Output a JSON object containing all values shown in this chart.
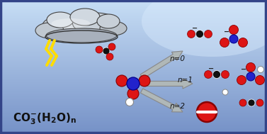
{
  "bg_grad_top": "#c8dff5",
  "bg_grad_bottom": "#4870b0",
  "bg_grad_mid_right": "#a0c8e8",
  "arrow_fill": "#b0b8b8",
  "arrow_edge": "#888888",
  "n0_label": "n=0",
  "n1_label": "n=1",
  "n2_label": "n=2",
  "red": "#dd1515",
  "blue": "#2222cc",
  "black": "#111111",
  "white": "#ffffff",
  "yellow": "#ffdd00",
  "cloud_colors": [
    "#d8dde2",
    "#c8cdd5",
    "#bcc4cc",
    "#c5cad0",
    "#b8bfc8",
    "#a8b0bc"
  ],
  "cloud_edge": "#444444",
  "minus_color": "#222222",
  "text_color": "#111111",
  "border_color": "#3355aa",
  "lightning_color": "#ffdd00",
  "lightning_edge": "#cc8800"
}
